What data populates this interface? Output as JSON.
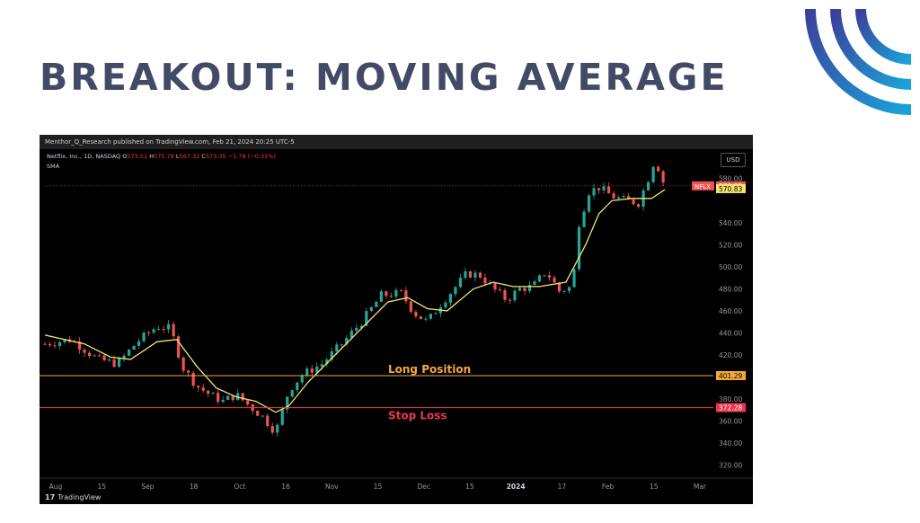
{
  "slide": {
    "title": "BREAKOUT: MOVING AVERAGE"
  },
  "chart_header": {
    "publisher": "Menthor_Q_Research published on TradingView.com, Feb 21, 2024 20:25 UTC-5"
  },
  "legend": {
    "symbol": "Netflix, Inc., 1D, NASDAQ",
    "open_label": "O",
    "open": "573.51",
    "high_label": "H",
    "high": "575.78",
    "low_label": "L",
    "low": "567.32",
    "close_label": "C",
    "close": "573.35",
    "change": "−1.78 (−0.31%)",
    "indicator": "SMA"
  },
  "currency_button": "USD",
  "footer": {
    "brand": "TradingView",
    "logo_glyph": "17"
  },
  "colors": {
    "up": "#26a69a",
    "down": "#ef5350",
    "sma": "#f5e56b",
    "long": "#f2a93b",
    "stop": "#e8384f",
    "title": "#434a66"
  },
  "chart_data": {
    "type": "candlestick",
    "x_ticks": [
      "Aug",
      "15",
      "Sep",
      "18",
      "Oct",
      "16",
      "Nov",
      "15",
      "Dec",
      "15",
      "2024",
      "17",
      "Feb",
      "15",
      "Mar"
    ],
    "y_ticks": [
      320,
      340,
      360,
      380,
      420,
      440,
      460,
      480,
      500,
      520,
      540,
      580
    ],
    "ylim": [
      310,
      605
    ],
    "price_labels": [
      {
        "text": "573.35",
        "value": 573.35,
        "tag": "NFLX",
        "color": "#ef5350"
      },
      {
        "text": "570.83",
        "value": 570.83,
        "color": "#f5e56b"
      },
      {
        "text": "401.29",
        "value": 401.29,
        "color": "#f2a93b"
      },
      {
        "text": "372.28",
        "value": 372.28,
        "color": "#e8384f"
      }
    ],
    "levels": [
      {
        "name": "Long Position",
        "value": 401.29
      },
      {
        "name": "Stop Loss",
        "value": 372.28
      }
    ],
    "close_path": [
      {
        "t": 0,
        "c": 430
      },
      {
        "t": 8,
        "c": 434
      },
      {
        "t": 16,
        "c": 416
      },
      {
        "t": 22,
        "c": 412
      },
      {
        "t": 28,
        "c": 432
      },
      {
        "t": 34,
        "c": 446
      },
      {
        "t": 38,
        "c": 444
      },
      {
        "t": 42,
        "c": 408
      },
      {
        "t": 46,
        "c": 392
      },
      {
        "t": 50,
        "c": 384
      },
      {
        "t": 54,
        "c": 378
      },
      {
        "t": 58,
        "c": 384
      },
      {
        "t": 62,
        "c": 374
      },
      {
        "t": 66,
        "c": 364
      },
      {
        "t": 70,
        "c": 350
      },
      {
        "t": 74,
        "c": 388
      },
      {
        "t": 78,
        "c": 402
      },
      {
        "t": 84,
        "c": 412
      },
      {
        "t": 90,
        "c": 430
      },
      {
        "t": 96,
        "c": 450
      },
      {
        "t": 102,
        "c": 474
      },
      {
        "t": 108,
        "c": 476
      },
      {
        "t": 112,
        "c": 458
      },
      {
        "t": 116,
        "c": 450
      },
      {
        "t": 120,
        "c": 466
      },
      {
        "t": 124,
        "c": 480
      },
      {
        "t": 128,
        "c": 494
      },
      {
        "t": 132,
        "c": 492
      },
      {
        "t": 136,
        "c": 480
      },
      {
        "t": 140,
        "c": 470
      },
      {
        "t": 144,
        "c": 480
      },
      {
        "t": 148,
        "c": 482
      },
      {
        "t": 152,
        "c": 496
      },
      {
        "t": 156,
        "c": 478
      },
      {
        "t": 160,
        "c": 482
      },
      {
        "t": 162,
        "c": 540
      },
      {
        "t": 165,
        "c": 568
      },
      {
        "t": 168,
        "c": 572
      },
      {
        "t": 172,
        "c": 564
      },
      {
        "t": 176,
        "c": 560
      },
      {
        "t": 180,
        "c": 558
      },
      {
        "t": 183,
        "c": 580
      },
      {
        "t": 185,
        "c": 598
      },
      {
        "t": 188,
        "c": 573
      }
    ],
    "sma_points": [
      {
        "t": 0,
        "v": 438
      },
      {
        "t": 12,
        "v": 430
      },
      {
        "t": 20,
        "v": 418
      },
      {
        "t": 26,
        "v": 416
      },
      {
        "t": 34,
        "v": 432
      },
      {
        "t": 40,
        "v": 434
      },
      {
        "t": 46,
        "v": 410
      },
      {
        "t": 52,
        "v": 390
      },
      {
        "t": 58,
        "v": 382
      },
      {
        "t": 64,
        "v": 378
      },
      {
        "t": 70,
        "v": 368
      },
      {
        "t": 74,
        "v": 374
      },
      {
        "t": 80,
        "v": 396
      },
      {
        "t": 88,
        "v": 420
      },
      {
        "t": 96,
        "v": 444
      },
      {
        "t": 104,
        "v": 468
      },
      {
        "t": 110,
        "v": 472
      },
      {
        "t": 116,
        "v": 462
      },
      {
        "t": 122,
        "v": 460
      },
      {
        "t": 130,
        "v": 480
      },
      {
        "t": 136,
        "v": 486
      },
      {
        "t": 142,
        "v": 482
      },
      {
        "t": 150,
        "v": 482
      },
      {
        "t": 158,
        "v": 486
      },
      {
        "t": 164,
        "v": 520
      },
      {
        "t": 168,
        "v": 548
      },
      {
        "t": 172,
        "v": 560
      },
      {
        "t": 178,
        "v": 562
      },
      {
        "t": 184,
        "v": 562
      },
      {
        "t": 188,
        "v": 570
      }
    ]
  }
}
